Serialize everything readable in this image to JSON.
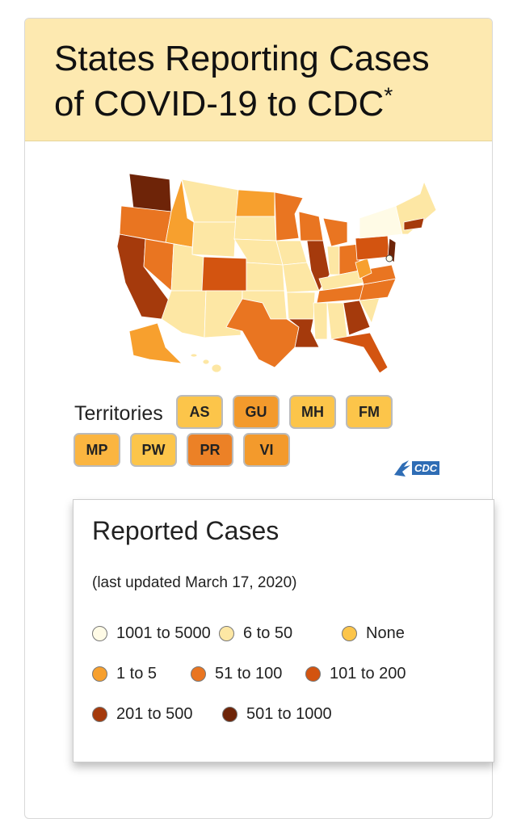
{
  "header": {
    "title": "States Reporting Cases of COVID-19 to CDC",
    "title_mark": "*"
  },
  "territories": {
    "label": "Territories",
    "items": [
      {
        "code": "AS",
        "color": "#fcc54a"
      },
      {
        "code": "GU",
        "color": "#f39a2c"
      },
      {
        "code": "MH",
        "color": "#fcc54a"
      },
      {
        "code": "FM",
        "color": "#fcc54a"
      },
      {
        "code": "MP",
        "color": "#fbb540"
      },
      {
        "code": "PW",
        "color": "#fcc54a"
      },
      {
        "code": "PR",
        "color": "#ec8126"
      },
      {
        "code": "VI",
        "color": "#f39a2c"
      }
    ]
  },
  "logo": {
    "text": "CDC"
  },
  "legend": {
    "title": "Reported Cases",
    "subtitle": "(last updated March 17, 2020)",
    "items": [
      {
        "label": "1001 to 5000",
        "color": "#fffbe6"
      },
      {
        "label": "6 to 50",
        "color": "#fde7a4"
      },
      {
        "label": "None",
        "color": "#fcc54a"
      },
      {
        "label": "1 to 5",
        "color": "#f7a02e"
      },
      {
        "label": "51 to 100",
        "color": "#e97521"
      },
      {
        "label": "101 to 200",
        "color": "#d35410"
      },
      {
        "label": "201 to 500",
        "color": "#a53a0c"
      },
      {
        "label": "501 to 1000",
        "color": "#6e2408"
      }
    ]
  }
}
